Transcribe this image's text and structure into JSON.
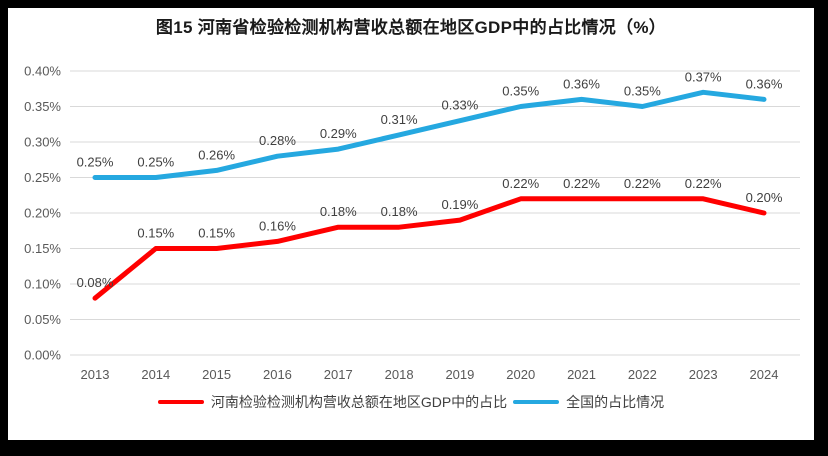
{
  "figure": {
    "title": "图15  河南省检验检测机构营收总额在地区GDP中的占比情况（%）"
  },
  "chart_data": {
    "type": "line",
    "title": "图15  河南省检验检测机构营收总额在地区GDP中的占比情况（%）",
    "categories": [
      "2013",
      "2014",
      "2015",
      "2016",
      "2017",
      "2018",
      "2019",
      "2020",
      "2021",
      "2022",
      "2023",
      "2024"
    ],
    "series": [
      {
        "name": "河南检验检测机构营收总额在地区GDP中的占比",
        "color": "#ff0000",
        "values": [
          0.08,
          0.15,
          0.15,
          0.16,
          0.18,
          0.18,
          0.19,
          0.22,
          0.22,
          0.22,
          0.22,
          0.2
        ],
        "labels": [
          "0.08%",
          "0.15%",
          "0.15%",
          "0.16%",
          "0.18%",
          "0.18%",
          "0.19%",
          "0.22%",
          "0.22%",
          "0.22%",
          "0.22%",
          "0.20%"
        ]
      },
      {
        "name": "全国的占比情况",
        "color": "#25a8e0",
        "values": [
          0.25,
          0.25,
          0.26,
          0.28,
          0.29,
          0.31,
          0.33,
          0.35,
          0.36,
          0.35,
          0.37,
          0.36
        ],
        "labels": [
          "0.25%",
          "0.25%",
          "0.26%",
          "0.28%",
          "0.29%",
          "0.31%",
          "0.33%",
          "0.35%",
          "0.36%",
          "0.35%",
          "0.37%",
          "0.36%"
        ]
      }
    ],
    "xlabel": "",
    "ylabel": "",
    "ylim": [
      0,
      0.4
    ],
    "ytick_step": 0.05,
    "ytick_labels": [
      "0.00%",
      "0.05%",
      "0.10%",
      "0.15%",
      "0.20%",
      "0.25%",
      "0.30%",
      "0.35%",
      "0.40%"
    ],
    "unit": "%",
    "grid": true,
    "legend_position": "bottom",
    "grid_color": "#d9d9d9",
    "tick_color": "#595959",
    "label_color": "#404040"
  }
}
